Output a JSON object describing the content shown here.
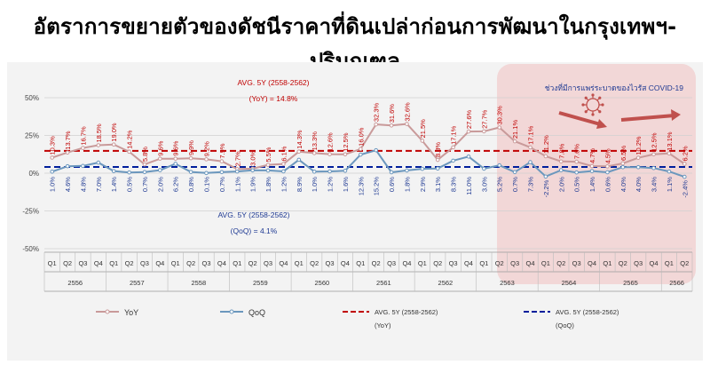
{
  "title": "อัตราการขยายตัวของดัชนีราคาที่ดินเปล่าก่อนการพัฒนาในกรุงเทพฯ-ปริมณฑล",
  "covid_label": "ช่วงที่มีการแพร่ระบาดของไวรัส COVID-19",
  "avg_yoy_label_1": "AVG. 5Y (2558-2562)",
  "avg_yoy_label_2": "(YoY) = 14.8%",
  "avg_qoq_label_1": "AVG. 5Y (2558-2562)",
  "avg_qoq_label_2": "(QoQ) = 4.1%",
  "legend": {
    "yoy": "YoY",
    "qoq": "QoQ",
    "avg_yoy_1": "AVG. 5Y (2558-2562)",
    "avg_yoy_2": "(YoY)",
    "avg_qoq_1": "AVG. 5Y (2558-2562)",
    "avg_qoq_2": "(QoQ)"
  },
  "colors": {
    "yoy": "#c99a9a",
    "qoq": "#6b97bd",
    "avg_yoy": "#c00000",
    "avg_qoq": "#001e9c",
    "yoy_text": "#c00000",
    "qoq_text": "#1f3a93",
    "covid_band": "#f2d7d7"
  },
  "chart_data": {
    "type": "line",
    "ylim": [
      -50,
      50
    ],
    "y_ticks": [
      "50%",
      "25%",
      "0%",
      "-25%",
      "-50%"
    ],
    "y_tick_values": [
      50,
      25,
      0,
      -25,
      -50
    ],
    "quarters": [
      "Q1",
      "Q2",
      "Q3",
      "Q4",
      "Q1",
      "Q2",
      "Q3",
      "Q4",
      "Q1",
      "Q2",
      "Q3",
      "Q4",
      "Q1",
      "Q2",
      "Q3",
      "Q4",
      "Q1",
      "Q2",
      "Q3",
      "Q4",
      "Q1",
      "Q2",
      "Q3",
      "Q4",
      "Q1",
      "Q2",
      "Q3",
      "Q4",
      "Q1",
      "Q2",
      "Q3",
      "Q4",
      "Q1",
      "Q2",
      "Q3",
      "Q4",
      "Q1",
      "Q2",
      "Q3",
      "Q4",
      "Q1",
      "Q2"
    ],
    "years": [
      "2556",
      "2557",
      "2558",
      "2559",
      "2560",
      "2561",
      "2562",
      "2563",
      "2564",
      "2565",
      "2566"
    ],
    "series": [
      {
        "name": "YoY",
        "values": [
          10.3,
          13.7,
          16.7,
          18.5,
          19.0,
          14.2,
          5.8,
          9.6,
          9.6,
          9.9,
          9.2,
          7.9,
          2.7,
          3.0,
          5.5,
          6.1,
          14.3,
          13.3,
          12.6,
          12.5,
          16.0,
          32.3,
          31.6,
          32.6,
          21.5,
          8.8,
          17.1,
          27.6,
          27.7,
          30.3,
          21.1,
          17.1,
          11.2,
          7.8,
          7.6,
          4.7,
          4.5,
          6.5,
          10.2,
          12.5,
          13.1,
          6.2
        ],
        "labels": [
          "10.3%",
          "13.7%",
          "16.7%",
          "18.5%",
          "19.0%",
          "14.2%",
          "5.8%",
          "9.6%",
          "9.6%",
          "9.9%",
          "9.2%",
          "7.9%",
          "2.7%",
          "3.0%",
          "5.5%",
          "6.1%",
          "14.3%",
          "13.3%",
          "12.6%",
          "12.5%",
          "16.0%",
          "32.3%",
          "31.6%",
          "32.6%",
          "21.5%",
          "8.8%",
          "17.1%",
          "27.6%",
          "27.7%",
          "30.3%",
          "21.1%",
          "17.1%",
          "11.2%",
          "7.8%",
          "7.6%",
          "4.7%",
          "4.5%",
          "6.5%",
          "10.2%",
          "12.5%",
          "13.1%",
          "6.2%"
        ]
      },
      {
        "name": "QoQ",
        "values": [
          1.0,
          4.6,
          4.8,
          7.0,
          1.4,
          0.5,
          0.7,
          2.0,
          6.2,
          0.8,
          0.1,
          0.7,
          1.1,
          1.9,
          1.8,
          1.2,
          8.9,
          1.0,
          1.2,
          1.6,
          12.3,
          15.2,
          0.6,
          1.8,
          2.9,
          3.1,
          8.3,
          11.0,
          3.0,
          5.2,
          0.7,
          7.3,
          -2.2,
          2.0,
          0.5,
          1.4,
          0.6,
          4.0,
          4.0,
          3.4,
          1.1,
          -2.4
        ],
        "labels": [
          "1.0%",
          "4.6%",
          "4.8%",
          "7.0%",
          "1.4%",
          "0.5%",
          "0.7%",
          "2.0%",
          "6.2%",
          "0.8%",
          "0.1%",
          "0.7%",
          "1.1%",
          "1.9%",
          "1.8%",
          "1.2%",
          "8.9%",
          "1.0%",
          "1.2%",
          "1.6%",
          "12.3%",
          "15.2%",
          "0.6%",
          "1.8%",
          "2.9%",
          "3.1%",
          "8.3%",
          "11.0%",
          "3.0%",
          "5.2%",
          "0.7%",
          "7.3%",
          "-2.2%",
          "2.0%",
          "0.5%",
          "1.4%",
          "0.6%",
          "4.0%",
          "4.0%",
          "3.4%",
          "1.1%",
          "-2.4%"
        ]
      },
      {
        "name": "AVG. 5Y (2558-2562) (YoY)",
        "value": 14.8
      },
      {
        "name": "AVG. 5Y (2558-2562) (QoQ)",
        "value": 4.1
      }
    ],
    "covid_period_start_index": 29
  }
}
